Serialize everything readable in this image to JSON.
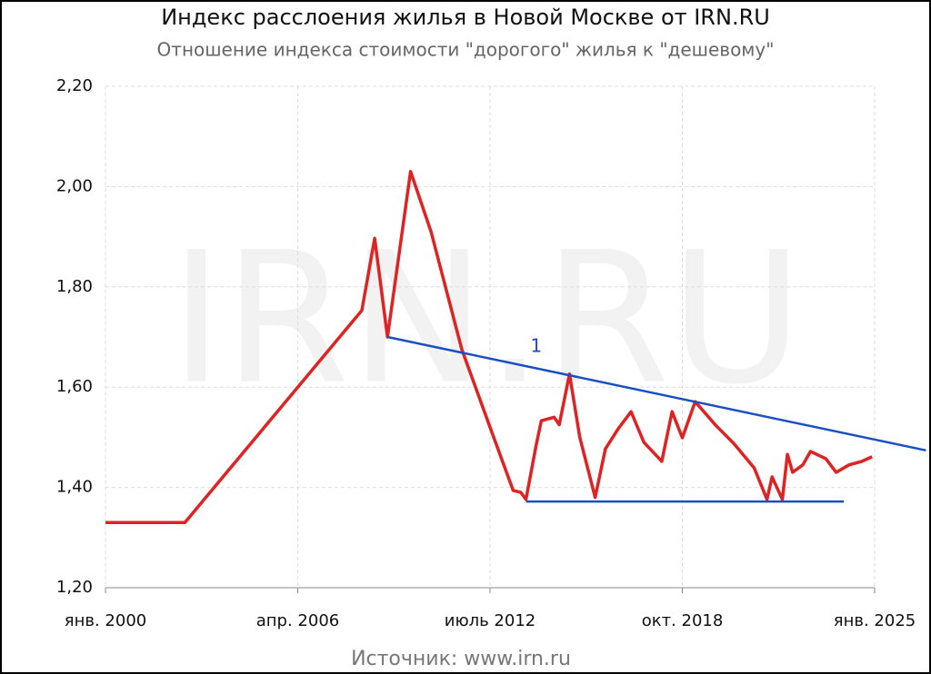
{
  "chart_data": {
    "type": "line",
    "title": "Индекс расслоения жилья в Новой Москве от IRN.RU",
    "subtitle": "Отношение индекса стоимости \"дорогого\" жилья к \"дешевому\"",
    "watermark": "IRN.RU",
    "source": "Источник: www.irn.ru",
    "x": [
      "2000-01",
      "2002-08",
      "2008-05",
      "2008-10",
      "2009-03",
      "2009-12",
      "2010-08",
      "2011-08",
      "2012-07",
      "2013-04",
      "2013-07",
      "2013-09",
      "2014-01",
      "2014-03",
      "2014-08",
      "2014-10",
      "2015-02",
      "2015-06",
      "2015-12",
      "2016-04",
      "2016-09",
      "2017-02",
      "2017-07",
      "2018-02",
      "2018-06",
      "2018-10",
      "2019-03",
      "2019-11",
      "2020-06",
      "2021-02",
      "2021-07",
      "2021-09",
      "2022-01",
      "2022-03",
      "2022-05",
      "2022-09",
      "2022-12",
      "2023-06",
      "2023-10",
      "2024-03",
      "2024-08",
      "2024-12"
    ],
    "series": [
      {
        "color": "#e02222",
        "values": [
          1.33,
          1.33,
          1.753,
          1.897,
          1.7,
          2.03,
          1.91,
          1.675,
          1.52,
          1.394,
          1.39,
          1.376,
          1.485,
          1.533,
          1.54,
          1.525,
          1.626,
          1.5,
          1.38,
          1.477,
          1.517,
          1.551,
          1.49,
          1.452,
          1.551,
          1.499,
          1.571,
          1.524,
          1.488,
          1.439,
          1.376,
          1.421,
          1.376,
          1.466,
          1.43,
          1.445,
          1.472,
          1.457,
          1.43,
          1.445,
          1.452,
          1.461
        ]
      }
    ],
    "lines": [
      {
        "color": "#1a4fc4",
        "x": [
          "2009-03",
          "2026-09"
        ],
        "values": [
          1.7,
          1.474
        ]
      },
      {
        "color": "#1a4fc4",
        "x": [
          "2013-09",
          "2024-01"
        ],
        "values": [
          1.372,
          1.372
        ]
      }
    ],
    "annotations": [
      {
        "text": "1",
        "x": "2014-01",
        "value": 1.68,
        "color": "#1a4fc4"
      }
    ],
    "xlim": [
      "2000-01",
      "2025-01"
    ],
    "xticks": [
      {
        "value": "2000-01",
        "label": "янв. 2000"
      },
      {
        "value": "2006-04",
        "label": "апр. 2006"
      },
      {
        "value": "2012-07",
        "label": "июль 2012"
      },
      {
        "value": "2018-10",
        "label": "окт. 2018"
      },
      {
        "value": "2025-01",
        "label": "янв. 2025"
      }
    ],
    "ylim": [
      1.2,
      2.2
    ],
    "yticks": [
      {
        "value": 1.2,
        "label": "1,20"
      },
      {
        "value": 1.4,
        "label": "1,40"
      },
      {
        "value": 1.6,
        "label": "1,60"
      },
      {
        "value": 1.8,
        "label": "1,80"
      },
      {
        "value": 2.0,
        "label": "2,00"
      },
      {
        "value": 2.2,
        "label": "2,20"
      }
    ],
    "grid": true
  }
}
